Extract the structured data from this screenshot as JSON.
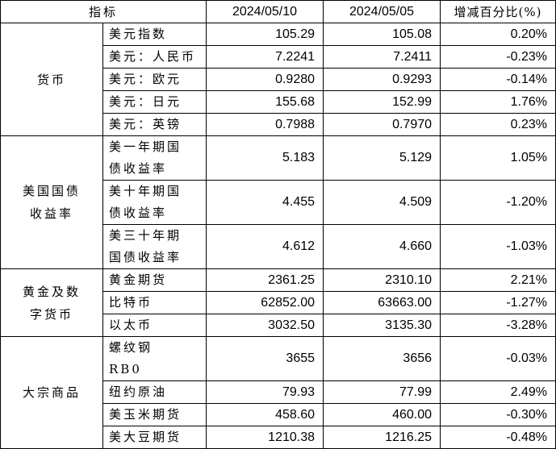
{
  "header": {
    "indicator": "指标",
    "date1": "2024/05/10",
    "date2": "2024/05/05",
    "change": "增减百分比(%)"
  },
  "groups": [
    {
      "name": "货币",
      "items": [
        {
          "label": "美元指数",
          "v1": "105.29",
          "v2": "105.08",
          "pct": "0.20%"
        },
        {
          "label": "美元：人民币",
          "v1": "7.2241",
          "v2": "7.2411",
          "pct": "-0.23%"
        },
        {
          "label": "美元：欧元",
          "v1": "0.9280",
          "v2": "0.9293",
          "pct": "-0.14%"
        },
        {
          "label": "美元：日元",
          "v1": "155.68",
          "v2": "152.99",
          "pct": "1.76%"
        },
        {
          "label": "美元：英镑",
          "v1": "0.7988",
          "v2": "0.7970",
          "pct": "0.23%"
        }
      ]
    },
    {
      "name": "美国国债收益率",
      "items": [
        {
          "label": "美一年期国债收益率",
          "v1": "5.183",
          "v2": "5.129",
          "pct": "1.05%"
        },
        {
          "label": "美十年期国债收益率",
          "v1": "4.455",
          "v2": "4.509",
          "pct": "-1.20%"
        },
        {
          "label": "美三十年期国债收益率",
          "v1": "4.612",
          "v2": "4.660",
          "pct": "-1.03%"
        }
      ]
    },
    {
      "name": "黄金及数字货币",
      "items": [
        {
          "label": "黄金期货",
          "v1": "2361.25",
          "v2": "2310.10",
          "pct": "2.21%"
        },
        {
          "label": "比特币",
          "v1": "62852.00",
          "v2": "63663.00",
          "pct": "-1.27%"
        },
        {
          "label": "以太币",
          "v1": "3032.50",
          "v2": "3135.30",
          "pct": "-3.28%"
        }
      ]
    },
    {
      "name": "大宗商品",
      "items": [
        {
          "label": "螺纹钢 RB0",
          "v1": "3655",
          "v2": "3656",
          "pct": "-0.03%"
        },
        {
          "label": "纽约原油",
          "v1": "79.93",
          "v2": "77.99",
          "pct": "2.49%"
        },
        {
          "label": "美玉米期货",
          "v1": "458.60",
          "v2": "460.00",
          "pct": "-0.30%"
        },
        {
          "label": "美大豆期货",
          "v1": "1210.38",
          "v2": "1216.25",
          "pct": "-0.48%"
        }
      ]
    }
  ]
}
